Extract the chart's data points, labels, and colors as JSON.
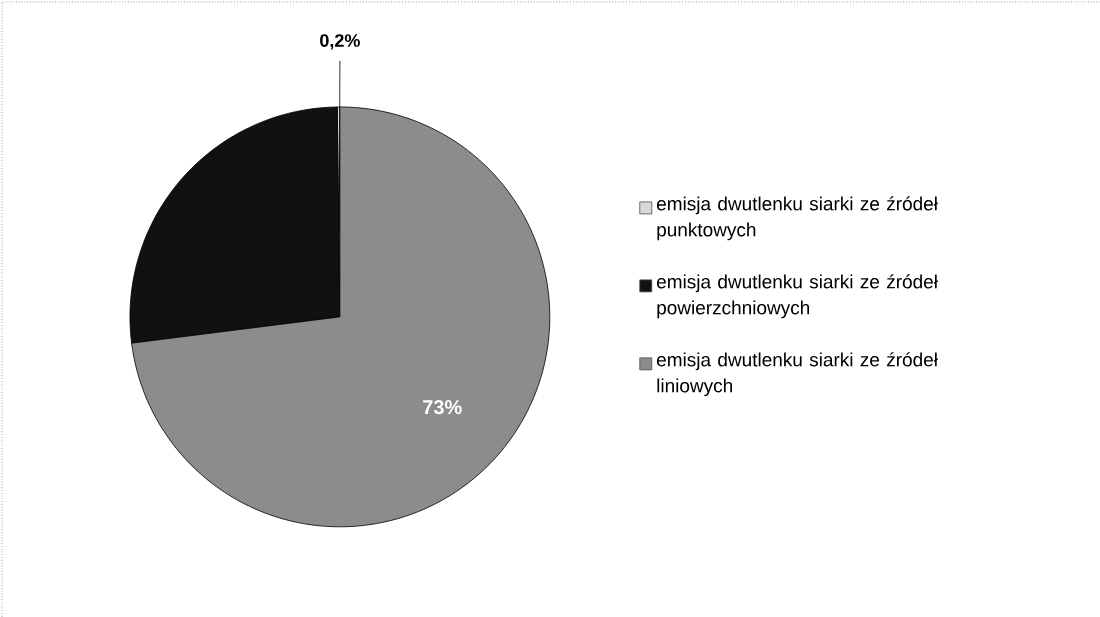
{
  "chart_data": {
    "type": "pie",
    "categories": [
      "emisja dwutlenku siarki ze źródeł punktowych",
      "emisja dwutlenku siarki ze źródeł powierzchniowych",
      "emisja dwutlenku siarki ze źródeł liniowych"
    ],
    "values": [
      0.2,
      26.8,
      73
    ],
    "colors": [
      "#d9d9d9",
      "#111111",
      "#8c8c8c"
    ],
    "value_labels": [
      "0,2%",
      null,
      "73%"
    ],
    "legend": "right"
  }
}
